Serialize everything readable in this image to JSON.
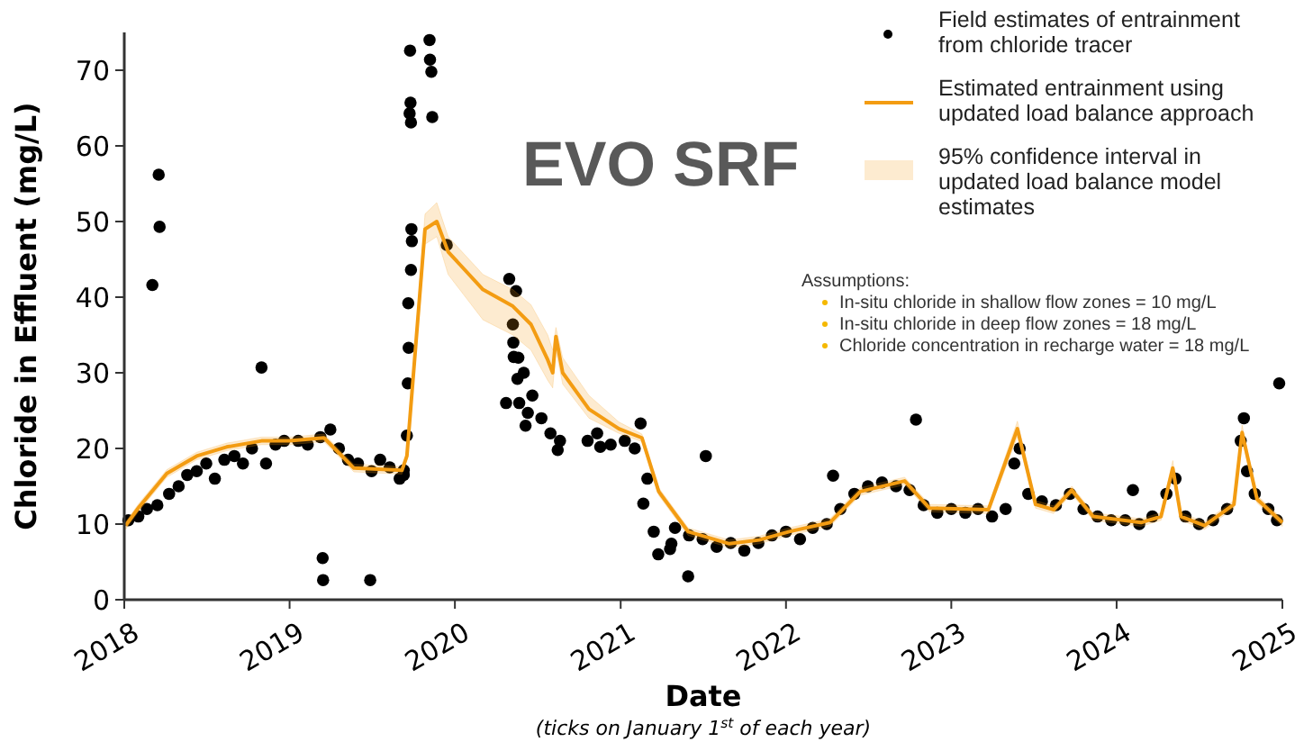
{
  "chart_data": {
    "type": "scatter",
    "title": "EVO SRF",
    "xlabel": "Date",
    "ylabel": "Chloride in Effluent (mg/L)",
    "annotations": [
      "95% confidence interval in updated load balance model estimates",
      "(ticks on January 1$^{st}$ of each year)",
      "Assumptions:",
      "In-situ chloride in shallow flow zones = 10 mg/L",
      "In-situ chloride in deep flow zones = 18 mg/L",
      "Chloride concentration in recharge water = 18 mg/L"
    ],
    "xlim": [
      "2018",
      "2025"
    ],
    "xticks": [
      "2018",
      "2019",
      "2020",
      "2021",
      "2022",
      "2023",
      "2024",
      "2025"
    ],
    "ylim": [
      0,
      75
    ],
    "yticks": [
      0,
      10,
      20,
      30,
      40,
      50,
      60,
      70
    ],
    "grid": false,
    "legend": "top right",
    "series": [
      {
        "name": "Field estimates of entrainment from chloride tracer",
        "marker": "circle",
        "color": "#000000",
        "x": [
          "2018-01-10",
          "2018-02-01",
          "2018-02-20",
          "2018-03-15",
          "2018-04-10",
          "2018-05-01",
          "2018-05-20",
          "2018-06-10",
          "2018-07-01",
          "2018-07-20",
          "2018-08-10",
          "2018-09-01",
          "2018-09-20",
          "2018-10-10",
          "2018-11-10",
          "2018-12-01",
          "2018-12-20",
          "2019-01-20",
          "2019-02-10",
          "2019-03-10",
          "2019-04-01",
          "2019-04-20",
          "2019-05-10",
          "2019-06-01",
          "2019-07-01",
          "2019-07-20",
          "2019-08-10",
          "2019-09-01",
          "2019-09-10",
          "2018-03-04",
          "2018-03-18",
          "2018-03-20",
          "2018-10-31",
          "2019-03-15",
          "2019-03-16",
          "2019-06-28",
          "2019-09-24",
          "2019-09-25",
          "2019-09-26",
          "2019-09-23",
          "2019-11-06",
          "2019-11-07",
          "2019-11-10",
          "2019-11-12",
          "2019-09-27",
          "2019-09-28",
          "2019-09-26",
          "2019-09-20",
          "2019-09-21",
          "2019-09-19",
          "2019-09-17",
          "2019-09-10",
          "2019-12-14",
          "2020-04-30",
          "2020-05-15",
          "2020-05-08",
          "2020-05-09",
          "2020-05-10",
          "2020-05-20",
          "2020-04-23",
          "2020-05-18",
          "2020-05-22",
          "2020-06-01",
          "2020-06-10",
          "2020-06-05",
          "2020-08-15",
          "2020-10-20",
          "2020-11-17",
          "2021-02-14",
          "2021-02-20",
          "2021-03-15",
          "2021-03-25",
          "2021-04-20",
          "2021-05-30",
          "2021-04-23",
          "2021-07-08",
          "2022-04-15",
          "2022-10-15",
          "2024-02-06",
          "2024-10-08",
          "2024-12-25",
          "2020-06-20",
          "2020-07-10",
          "2020-07-30",
          "2020-08-20",
          "2020-11-10",
          "2020-12-10",
          "2021-01-10",
          "2021-02-01",
          "2021-03-01",
          "2021-05-01",
          "2021-06-01",
          "2021-07-01",
          "2021-08-01",
          "2021-09-01",
          "2021-10-01",
          "2021-11-01",
          "2021-12-01",
          "2022-01-01",
          "2022-02-01",
          "2022-03-01",
          "2022-04-01",
          "2022-05-01",
          "2022-06-01",
          "2022-07-01",
          "2022-08-01",
          "2022-09-01",
          "2022-10-01",
          "2022-11-01",
          "2022-12-01",
          "2023-01-01",
          "2023-02-01",
          "2023-03-01",
          "2023-04-01",
          "2023-05-01",
          "2023-05-20",
          "2023-06-01",
          "2023-06-20",
          "2023-07-20",
          "2023-08-20",
          "2023-09-20",
          "2023-10-20",
          "2023-11-20",
          "2023-12-20",
          "2024-01-20",
          "2024-02-20",
          "2024-03-20",
          "2024-04-20",
          "2024-05-10",
          "2024-06-01",
          "2024-07-01",
          "2024-08-01",
          "2024-09-01",
          "2024-10-01",
          "2024-10-15",
          "2024-11-01",
          "2024-12-01",
          "2024-12-20"
        ],
        "values": [
          10.5,
          11,
          12,
          12.5,
          14,
          15,
          16.5,
          17,
          18,
          16,
          18.5,
          19,
          18,
          20,
          18,
          20.5,
          21,
          21,
          20.5,
          21.5,
          22.5,
          20,
          18.5,
          18,
          17,
          18.5,
          17.5,
          16,
          16.5,
          41.6,
          56.2,
          49.3,
          30.7,
          5.5,
          2.6,
          2.6,
          72.6,
          65.7,
          63.1,
          64.3,
          74,
          71.4,
          69.8,
          63.8,
          49,
          47.4,
          43.6,
          39.2,
          33.3,
          28.6,
          21.7,
          17.1,
          46.9,
          42.4,
          40.8,
          36.4,
          34,
          32.1,
          32,
          26,
          29.2,
          26,
          30,
          24.7,
          23,
          19.8,
          21,
          20.2,
          23.3,
          12.7,
          9,
          6,
          6.7,
          3.1,
          7.4,
          19,
          16.4,
          23.8,
          14.5,
          24,
          28.6,
          27,
          24,
          22,
          21,
          22,
          20.5,
          21,
          20,
          16,
          9.5,
          8.5,
          8,
          7,
          7.5,
          6.5,
          7.5,
          8.5,
          9,
          8,
          9.5,
          10,
          12,
          14,
          15,
          15.5,
          15,
          14.5,
          12.5,
          11.5,
          12,
          11.5,
          12,
          11,
          12,
          18,
          20,
          14,
          13,
          12.5,
          14,
          12,
          11,
          10.5,
          10.5,
          10,
          11,
          14,
          16,
          11,
          10,
          10.5,
          12,
          21,
          17,
          14,
          12,
          10.5
        ]
      },
      {
        "name": "Estimated entrainment using updated load balance approach",
        "type": "line",
        "marker": "none",
        "color": "#f39c12",
        "lower": [
          9.3,
          11.7,
          16.2,
          18.5,
          19.7,
          20.5,
          20.5,
          20.9,
          16.9,
          16.6,
          18.5,
          47,
          48,
          43,
          37,
          35,
          33,
          29,
          28,
          33,
          28.5,
          24,
          22,
          20.9,
          13.8,
          8.5,
          6.9,
          7.4,
          8.5,
          9.7,
          13.8,
          15.2,
          11.6,
          11.4,
          21.6,
          12.1,
          11.4,
          14,
          10.5,
          9.7,
          10.5,
          16.4,
          10.5,
          9.3,
          12.1,
          21.1,
          12.8,
          9.7
        ],
        "upper": [
          10.3,
          12.7,
          17.2,
          19.5,
          20.7,
          21.5,
          21.5,
          21.9,
          17.9,
          17.6,
          19.5,
          51,
          52.5,
          48,
          43,
          41,
          39,
          35,
          33,
          36,
          32,
          27,
          23.5,
          21.9,
          14.8,
          9.5,
          7.9,
          8.4,
          9.5,
          10.7,
          14.8,
          16.2,
          12.6,
          12.4,
          23.6,
          13.1,
          12.4,
          15,
          11.5,
          10.7,
          11.5,
          18.4,
          11.5,
          10.3,
          13.1,
          23.1,
          13.8,
          10.7
        ],
        "x": [
          "2018-01-04",
          "2018-02-02",
          "2018-04-05",
          "2018-06-10",
          "2018-08-15",
          "2018-10-31",
          "2019-01-01",
          "2019-03-18",
          "2019-05-23",
          "2019-09-06",
          "2019-09-17",
          "2019-10-27",
          "2019-11-22",
          "2019-12-17",
          "2020-03-03",
          "2020-05-08",
          "2020-06-17",
          "2020-07-24",
          "2020-08-04",
          "2020-08-11",
          "2020-08-26",
          "2020-10-23",
          "2020-12-28",
          "2021-02-17",
          "2021-03-26",
          "2021-05-30",
          "2021-08-29",
          "2021-11-03",
          "2022-01-08",
          "2022-04-08",
          "2022-06-14",
          "2022-09-20",
          "2022-11-14",
          "2023-03-24",
          "2023-05-27",
          "2023-07-06",
          "2023-08-15",
          "2023-09-24",
          "2023-11-10",
          "2024-02-24",
          "2024-04-08",
          "2024-05-04",
          "2024-05-22",
          "2024-07-13",
          "2024-09-16",
          "2024-10-04",
          "2024-11-06",
          "2025-01-01"
        ],
        "values": [
          9.8,
          12.2,
          16.7,
          19,
          20.2,
          21,
          21,
          21.4,
          17.4,
          17.1,
          19,
          49,
          50,
          46,
          41,
          38.8,
          36.4,
          31.7,
          30,
          34.8,
          30,
          25.2,
          22.6,
          21.4,
          14.3,
          9,
          7.4,
          7.9,
          9,
          10.2,
          14.3,
          15.7,
          12.1,
          11.9,
          22.6,
          12.6,
          11.9,
          14.5,
          11,
          10.2,
          11,
          17.4,
          11,
          9.8,
          12.6,
          22.1,
          13.3,
          10.2
        ]
      }
    ]
  }
}
